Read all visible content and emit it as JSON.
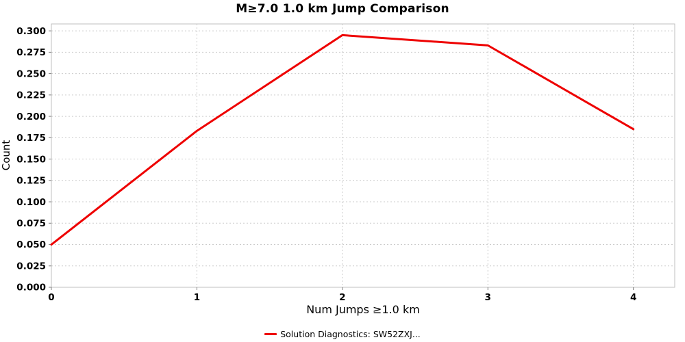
{
  "chart_data": {
    "type": "line",
    "title": "M≥7.0 1.0 km Jump Comparison",
    "xlabel": "Num Jumps ≥1.0 km",
    "ylabel": "Count",
    "x": [
      0,
      1,
      2,
      3,
      4
    ],
    "series": [
      {
        "name": "Solution Diagnostics: SW52ZXJ...",
        "color": "#ee0000",
        "values": [
          0.05,
          0.183,
          0.295,
          0.283,
          0.185
        ]
      }
    ],
    "xticks": [
      "0",
      "1",
      "2",
      "3",
      "4"
    ],
    "yticks": [
      "0.000",
      "0.025",
      "0.050",
      "0.075",
      "0.100",
      "0.125",
      "0.150",
      "0.175",
      "0.200",
      "0.225",
      "0.250",
      "0.275",
      "0.300"
    ],
    "xlim": [
      0,
      4
    ],
    "ylim": [
      0,
      0.3
    ],
    "grid": true,
    "grid_color": "#cccccc",
    "plot_border_color": "#bfbfbf",
    "tick_color": "#808080",
    "legend_position": "bottom"
  }
}
